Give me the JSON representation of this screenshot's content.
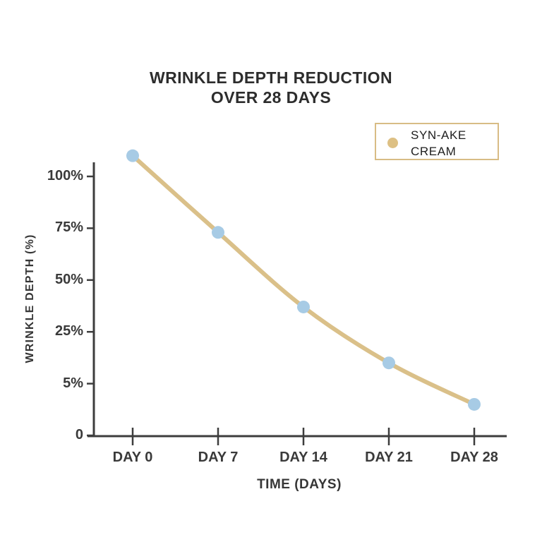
{
  "title": {
    "line1": "WRINKLE DEPTH REDUCTION",
    "line2": "OVER 28 DAYS"
  },
  "legend": {
    "series_label_line1": "SYN-AKE",
    "series_label_line2": "CREAM",
    "marker_color": "#ddc084",
    "border_color": "#d8bc85"
  },
  "chart_data": {
    "type": "line",
    "title": "WRINKLE DEPTH REDUCTION OVER 28 DAYS",
    "xlabel": "TIME (DAYS)",
    "ylabel": "WRINKLE DEPTH (%)",
    "categories": [
      "DAY 0",
      "DAY 7",
      "DAY 14",
      "DAY 21",
      "DAY 28"
    ],
    "x_tick_values": [
      0,
      7,
      14,
      21,
      28
    ],
    "y_tick_labels": [
      "100%",
      "75%",
      "50%",
      "25%",
      "5%",
      "0"
    ],
    "y_tick_values": [
      100,
      75,
      50,
      25,
      5,
      0
    ],
    "series": [
      {
        "name": "SYN-AKE CREAM",
        "values": [
          110,
          73,
          37,
          13,
          3
        ],
        "line_color": "#dac089",
        "marker_color": "#a7cbe5"
      }
    ],
    "grid": false,
    "legend_position": "top-right",
    "axis_color": "#3d3d3d",
    "label_color": "#3a3a3a"
  }
}
